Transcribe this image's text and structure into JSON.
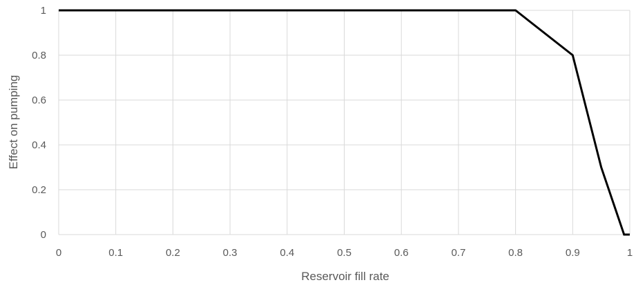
{
  "chart_data": {
    "type": "line",
    "title": "",
    "xlabel": "Reservoir fill rate",
    "ylabel": "Effect on pumping",
    "xlim": [
      0,
      1
    ],
    "ylim": [
      0,
      1
    ],
    "x_ticks": [
      "0",
      "0.1",
      "0.2",
      "0.3",
      "0.4",
      "0.5",
      "0.6",
      "0.7",
      "0.8",
      "0.9",
      "1"
    ],
    "y_ticks": [
      "0",
      "0.2",
      "0.4",
      "0.6",
      "0.8",
      "1"
    ],
    "grid": true,
    "legend": "none",
    "series": [
      {
        "color": "#000000",
        "x": [
          0,
          0.8,
          0.9,
          0.95,
          0.99,
          1.0
        ],
        "y": [
          1,
          1,
          0.8,
          0.3,
          0,
          0
        ]
      }
    ],
    "colors": {
      "grid": "#d9d9d9",
      "text": "#595959",
      "line": "#000000"
    }
  }
}
